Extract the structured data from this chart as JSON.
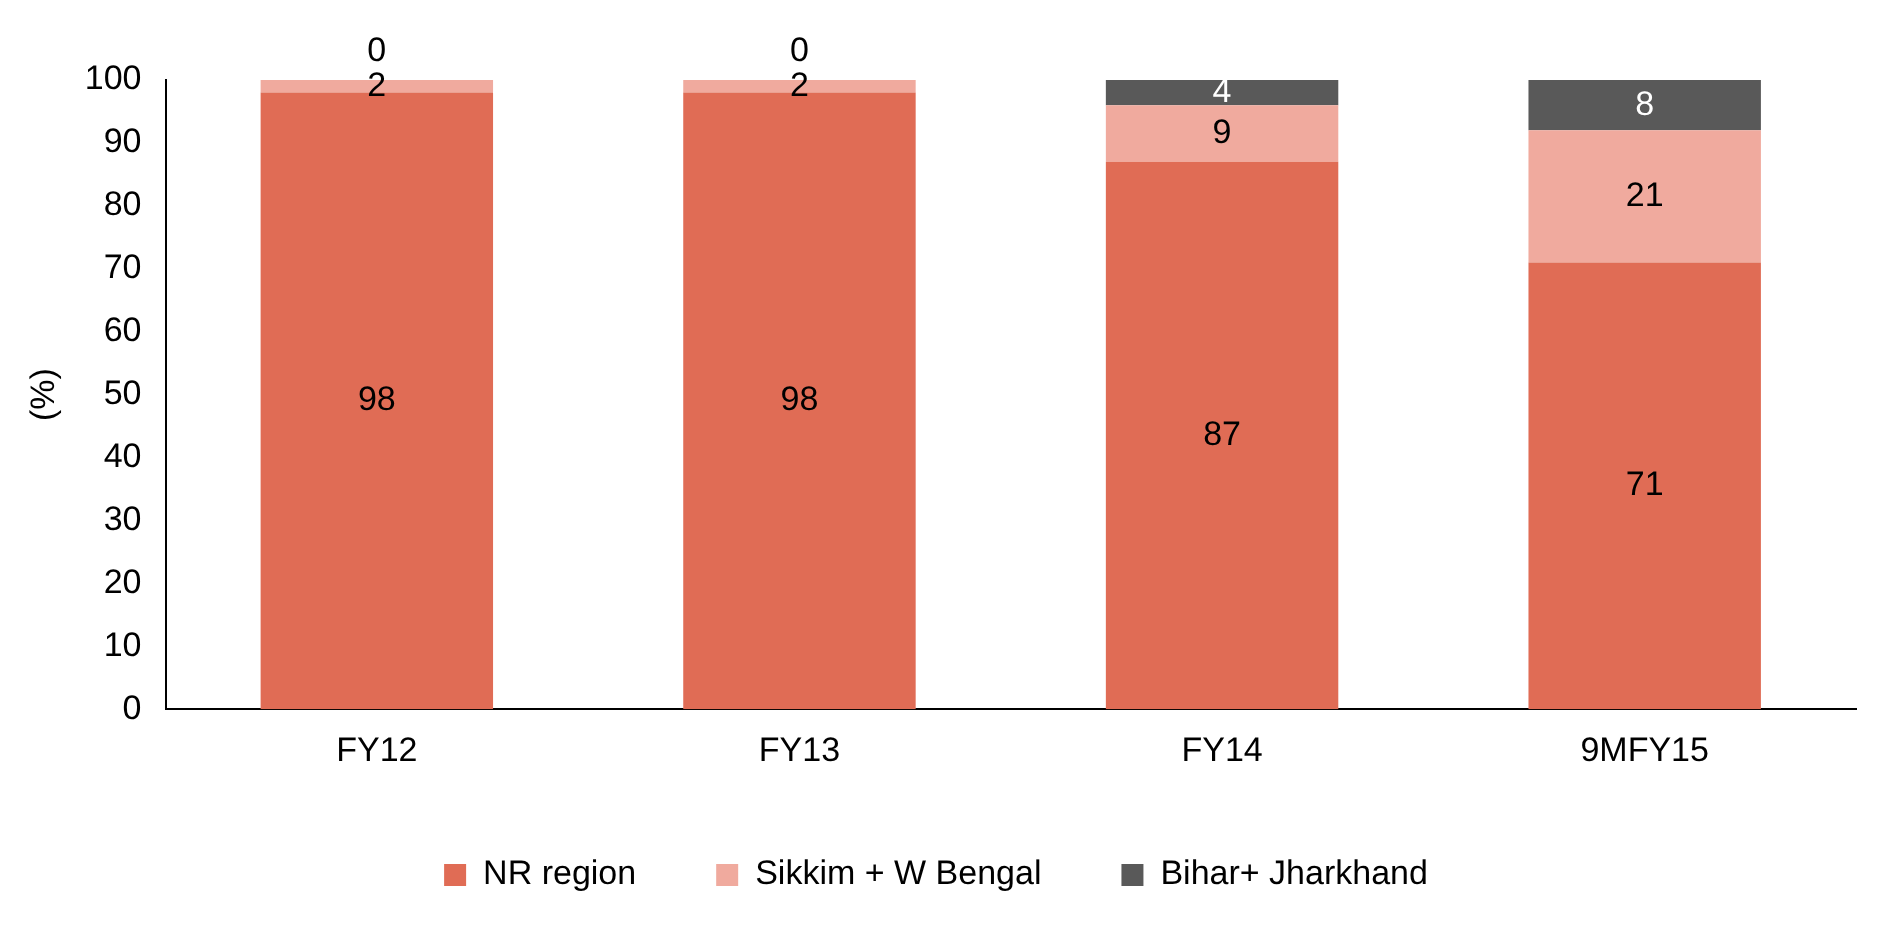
{
  "chart_data": {
    "type": "bar",
    "ylabel": "(%)",
    "categories": [
      "FY12",
      "FY13",
      "FY14",
      "9MFY15"
    ],
    "stacked": true,
    "data_labels": true,
    "grid": false,
    "legend": "bottom",
    "ylim": [
      0,
      100
    ],
    "yticks": [
      0,
      10,
      20,
      30,
      40,
      50,
      60,
      70,
      80,
      90,
      100
    ],
    "series": [
      {
        "name": "NR region",
        "color": "#e06c55",
        "values": [
          98,
          98,
          87,
          71
        ]
      },
      {
        "name": "Sikkim + W Bengal",
        "color": "#f0aa9e",
        "values": [
          2,
          2,
          9,
          21
        ]
      },
      {
        "name": "Bihar+ Jharkhand",
        "color": "#595959",
        "values": [
          0,
          0,
          4,
          8
        ]
      }
    ]
  }
}
